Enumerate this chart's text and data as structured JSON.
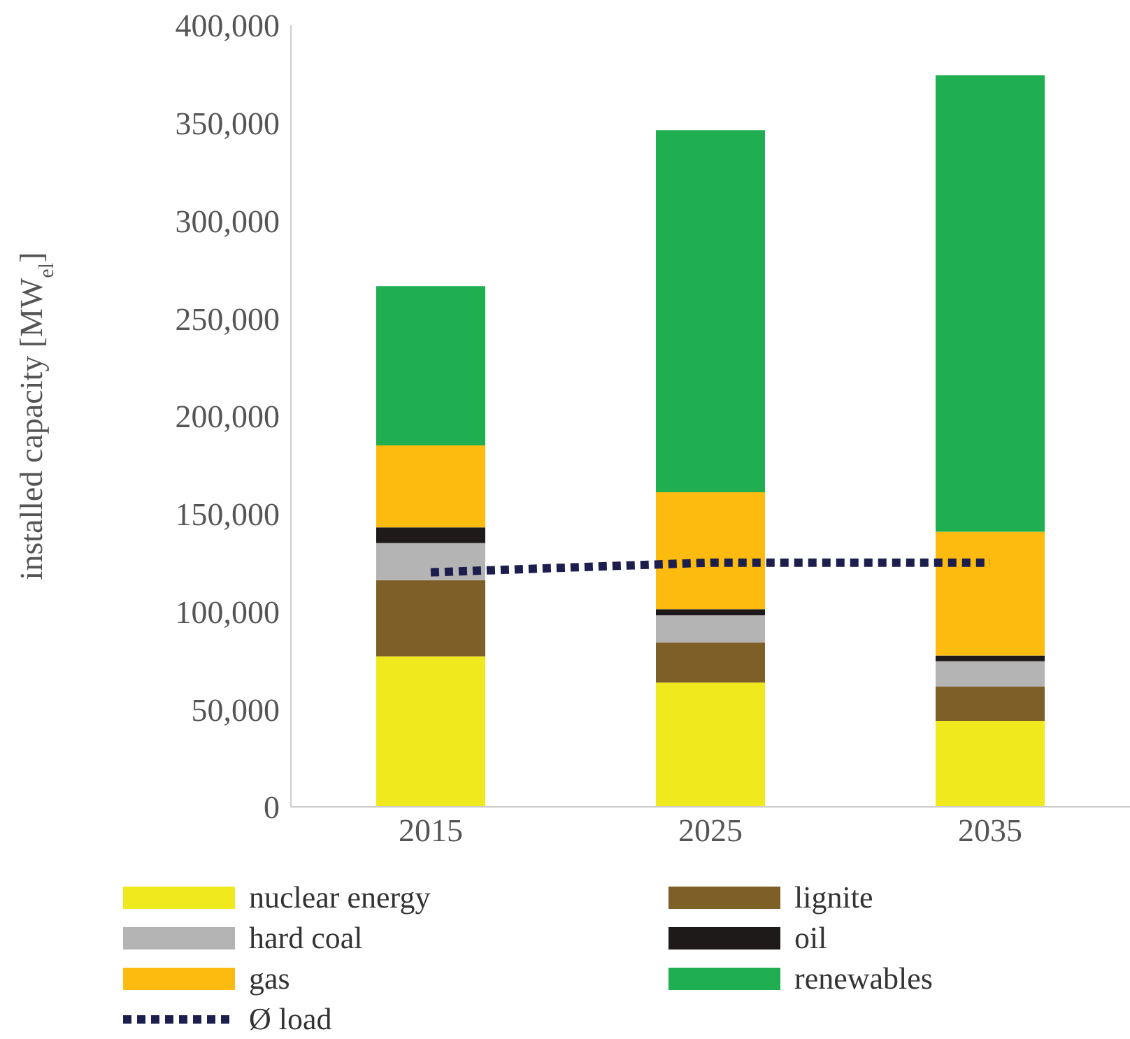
{
  "chart_data": {
    "type": "bar",
    "stacked": true,
    "categories": [
      "2015",
      "2025",
      "2035"
    ],
    "ylabel": "installed capacity [MW$_{el}$]",
    "ylim": [
      0,
      400000
    ],
    "yticks": [
      {
        "value": 0,
        "label": "0"
      },
      {
        "value": 50000,
        "label": "50,000"
      },
      {
        "value": 100000,
        "label": "100,000"
      },
      {
        "value": 150000,
        "label": "150,000"
      },
      {
        "value": 200000,
        "label": "200,000"
      },
      {
        "value": 250000,
        "label": "250,000"
      },
      {
        "value": 300000,
        "label": "300,000"
      },
      {
        "value": 350000,
        "label": "350,000"
      },
      {
        "value": 400000,
        "label": "400,000"
      }
    ],
    "legend": "bottom",
    "series": [
      {
        "name": "nuclear energy",
        "color": "#f0e91e",
        "values": [
          77000,
          63600,
          44000
        ]
      },
      {
        "name": "lignite",
        "color": "#7f5f28",
        "values": [
          39000,
          20600,
          17500
        ]
      },
      {
        "name": "hard coal",
        "color": "#b4b4b4",
        "values": [
          19000,
          13800,
          13000
        ]
      },
      {
        "name": "oil",
        "color": "#1e1a1a",
        "values": [
          8000,
          3200,
          3000
        ]
      },
      {
        "name": "gas",
        "color": "#fdbb10",
        "values": [
          42000,
          59800,
          63300
        ]
      },
      {
        "name": "renewables",
        "color": "#1fae50",
        "values": [
          81500,
          185200,
          233600
        ]
      },
      {
        "name": "Ø load",
        "type": "line",
        "color": "#1c1e4e",
        "line_style": "dotted",
        "marker": "none",
        "values": [
          120000,
          125000,
          125000
        ]
      }
    ]
  }
}
